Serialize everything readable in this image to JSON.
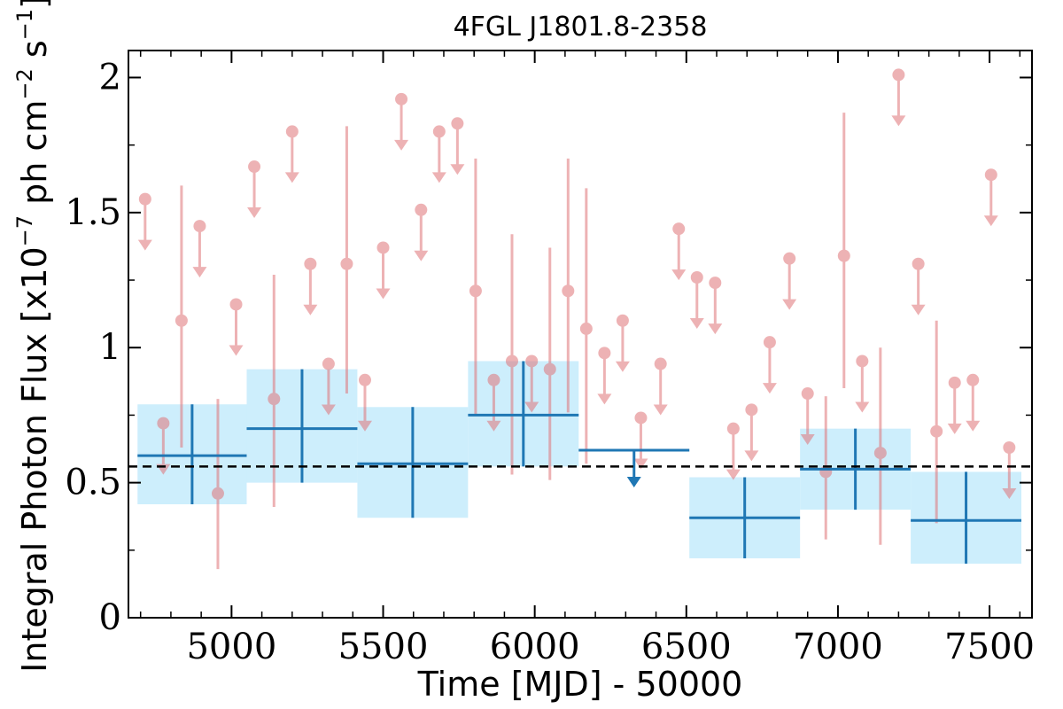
{
  "chart_data": {
    "type": "scatter",
    "title": "4FGL J1801.8-2358",
    "xlabel": "Time [MJD] - 50000",
    "ylabel": "Integral Photon Flux [x10",
    "ylabel_exp": "−7",
    "ylabel_mid": " ph cm",
    "ylabel_exp2": "−2",
    "ylabel_end": " s",
    "ylabel_exp3": "−1",
    "ylabel_close": "]",
    "xlim": [
      4660,
      7640
    ],
    "ylim": [
      0,
      2.1
    ],
    "x_ticks": [
      5000,
      5500,
      6000,
      6500,
      7000,
      7500
    ],
    "x_tick_labels": [
      "5000",
      "5500",
      "6000",
      "6500",
      "7000",
      "7500"
    ],
    "y_ticks": [
      0,
      0.5,
      1,
      1.5,
      2
    ],
    "y_tick_labels": [
      "0",
      "0.5",
      "1",
      "1.5",
      "2"
    ],
    "grid": false,
    "mean_flux": 0.56,
    "colors": {
      "short_bin": "#e07478",
      "long_bin": "#1f77b4",
      "band": "#cdeefc",
      "mean_line": "#000000"
    },
    "long_bins": [
      {
        "x0": 4690,
        "x1": 5050,
        "y": 0.6,
        "ylo": 0.42,
        "yhi": 0.79
      },
      {
        "x0": 5050,
        "x1": 5415,
        "y": 0.7,
        "ylo": 0.5,
        "yhi": 0.92
      },
      {
        "x0": 5415,
        "x1": 5780,
        "y": 0.57,
        "ylo": 0.37,
        "yhi": 0.78
      },
      {
        "x0": 5780,
        "x1": 6145,
        "y": 0.75,
        "ylo": 0.56,
        "yhi": 0.95
      },
      {
        "x0": 6145,
        "x1": 6510,
        "y": 0.62,
        "upper_limit": true
      },
      {
        "x0": 6510,
        "x1": 6875,
        "y": 0.37,
        "ylo": 0.22,
        "yhi": 0.52
      },
      {
        "x0": 6875,
        "x1": 7240,
        "y": 0.55,
        "ylo": 0.4,
        "yhi": 0.7
      },
      {
        "x0": 7240,
        "x1": 7605,
        "y": 0.36,
        "ylo": 0.2,
        "yhi": 0.54
      }
    ],
    "short_bins": [
      {
        "x": 4715,
        "y": 1.55,
        "ul": true
      },
      {
        "x": 4775,
        "y": 0.72,
        "ul": true
      },
      {
        "x": 4835,
        "y": 1.1,
        "ylo": 0.63,
        "yhi": 1.6
      },
      {
        "x": 4895,
        "y": 1.45,
        "ul": true
      },
      {
        "x": 4955,
        "y": 0.46,
        "ylo": 0.18,
        "yhi": 0.81
      },
      {
        "x": 5015,
        "y": 1.16,
        "ul": true
      },
      {
        "x": 5075,
        "y": 1.67,
        "ul": true
      },
      {
        "x": 5140,
        "y": 0.81,
        "ylo": 0.41,
        "yhi": 1.27
      },
      {
        "x": 5200,
        "y": 1.8,
        "ul": true
      },
      {
        "x": 5260,
        "y": 1.31,
        "ul": true
      },
      {
        "x": 5320,
        "y": 0.94,
        "ul": true
      },
      {
        "x": 5380,
        "y": 1.31,
        "ylo": 0.83,
        "yhi": 1.82
      },
      {
        "x": 5440,
        "y": 0.88,
        "ul": true
      },
      {
        "x": 5500,
        "y": 1.37,
        "ul": true
      },
      {
        "x": 5560,
        "y": 1.92,
        "ul": true
      },
      {
        "x": 5625,
        "y": 1.51,
        "ul": true
      },
      {
        "x": 5685,
        "y": 1.8,
        "ul": true
      },
      {
        "x": 5745,
        "y": 1.83,
        "ul": true
      },
      {
        "x": 5805,
        "y": 1.21,
        "ylo": 0.75,
        "yhi": 1.7
      },
      {
        "x": 5865,
        "y": 0.88,
        "ul": true
      },
      {
        "x": 5925,
        "y": 0.95,
        "ylo": 0.53,
        "yhi": 1.42
      },
      {
        "x": 5990,
        "y": 0.95,
        "ul": true
      },
      {
        "x": 6050,
        "y": 0.92,
        "ylo": 0.51,
        "yhi": 1.37
      },
      {
        "x": 6110,
        "y": 1.21,
        "ylo": 0.76,
        "yhi": 1.7
      },
      {
        "x": 6170,
        "y": 1.07,
        "ylo": 0.57,
        "yhi": 1.59
      },
      {
        "x": 6230,
        "y": 0.98,
        "ul": true
      },
      {
        "x": 6290,
        "y": 1.1,
        "ul": true
      },
      {
        "x": 6350,
        "y": 0.74,
        "ul": true
      },
      {
        "x": 6415,
        "y": 0.94,
        "ul": true
      },
      {
        "x": 6475,
        "y": 1.44,
        "ul": true
      },
      {
        "x": 6535,
        "y": 1.26,
        "ul": true
      },
      {
        "x": 6595,
        "y": 1.24,
        "ul": true
      },
      {
        "x": 6655,
        "y": 0.7,
        "ul": true
      },
      {
        "x": 6715,
        "y": 0.77,
        "ul": true
      },
      {
        "x": 6775,
        "y": 1.02,
        "ul": true
      },
      {
        "x": 6840,
        "y": 1.33,
        "ul": true
      },
      {
        "x": 6900,
        "y": 0.83,
        "ul": true
      },
      {
        "x": 6960,
        "y": 0.54,
        "ylo": 0.29,
        "yhi": 0.82
      },
      {
        "x": 7020,
        "y": 1.34,
        "ylo": 0.85,
        "yhi": 1.87
      },
      {
        "x": 7080,
        "y": 0.95,
        "ul": true
      },
      {
        "x": 7140,
        "y": 0.61,
        "ylo": 0.27,
        "yhi": 1.0
      },
      {
        "x": 7200,
        "y": 2.01,
        "ul": true
      },
      {
        "x": 7265,
        "y": 1.31,
        "ul": true
      },
      {
        "x": 7325,
        "y": 0.69,
        "ylo": 0.35,
        "yhi": 1.1
      },
      {
        "x": 7385,
        "y": 0.87,
        "ul": true
      },
      {
        "x": 7445,
        "y": 0.88,
        "ul": true
      },
      {
        "x": 7505,
        "y": 1.64,
        "ul": true
      },
      {
        "x": 7565,
        "y": 0.63,
        "ul": true
      }
    ]
  }
}
